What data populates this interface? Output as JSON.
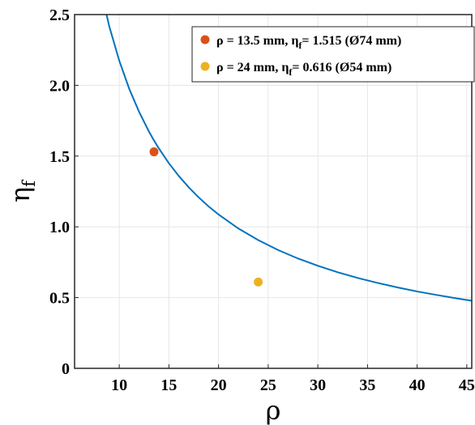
{
  "chart_data": {
    "type": "line",
    "xlabel": "ρ",
    "ylabel": "η_f",
    "ylabel_main": "η",
    "ylabel_sub": "f",
    "xlim": [
      5.5,
      45.5
    ],
    "ylim": [
      0,
      2.5
    ],
    "xticks": [
      10,
      15,
      20,
      25,
      30,
      35,
      40,
      45
    ],
    "xtick_labels": [
      "10",
      "15",
      "20",
      "25",
      "30",
      "35",
      "40",
      "45"
    ],
    "yticks": [
      0,
      0.5,
      1.0,
      1.5,
      2.0,
      2.5
    ],
    "ytick_labels": [
      "0",
      "0.5",
      "1.0",
      "1.5",
      "2.0",
      "2.5"
    ],
    "grid": true,
    "legend_position": "top-right",
    "series": [
      {
        "color": "#0072BD",
        "x": [
          8.5,
          9,
          10,
          11,
          12,
          13,
          13.5,
          14,
          15,
          16,
          17,
          18,
          19,
          20,
          22,
          24,
          26,
          28,
          30,
          32,
          34,
          36,
          38,
          40,
          42,
          44,
          45.5
        ],
        "y": [
          2.565,
          2.415,
          2.174,
          1.976,
          1.812,
          1.672,
          1.61,
          1.553,
          1.449,
          1.359,
          1.279,
          1.208,
          1.144,
          1.087,
          0.988,
          0.906,
          0.836,
          0.776,
          0.725,
          0.679,
          0.639,
          0.604,
          0.572,
          0.543,
          0.518,
          0.494,
          0.478
        ]
      }
    ],
    "markers": [
      {
        "label_prefix": "ρ = 13.5 mm, η",
        "label_sub": "f",
        "label_suffix": "= 1.515 (Ø74 mm)",
        "x": 13.5,
        "y": 1.53,
        "color": "#D95319"
      },
      {
        "label_prefix": "ρ = 24 mm, η",
        "label_sub": "f",
        "label_suffix": "= 0.616 (Ø54 mm)",
        "x": 24,
        "y": 0.61,
        "color": "#EDB120"
      }
    ]
  }
}
